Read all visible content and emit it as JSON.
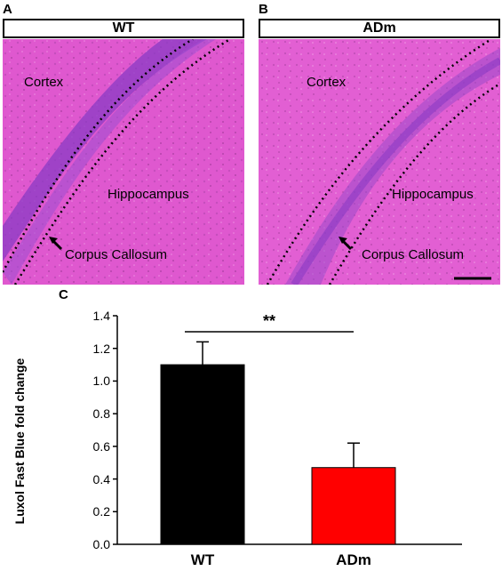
{
  "panels": {
    "a": {
      "letter": "A",
      "title": "WT",
      "labels": {
        "cortex": "Cortex",
        "hippocampus": "Hippocampus",
        "corpus": "Corpus Callosum"
      }
    },
    "b": {
      "letter": "B",
      "title": "ADm",
      "labels": {
        "cortex": "Cortex",
        "hippocampus": "Hippocampus",
        "corpus": "Corpus Callosum"
      }
    },
    "c": {
      "letter": "C"
    }
  },
  "colors": {
    "tissue_pink": "#e05ad0",
    "myelin_purple": "#8a3bc4",
    "wt_bar": "#000000",
    "adm_bar": "#ff0000"
  },
  "chart_data": {
    "type": "bar",
    "categories": [
      "WT",
      "ADm"
    ],
    "values": [
      1.1,
      0.47
    ],
    "errors": [
      0.14,
      0.15
    ],
    "ylabel": "Luxol Fast Blue fold change",
    "ylim": [
      0.0,
      1.4
    ],
    "yticks": [
      "0.0",
      "0.2",
      "0.4",
      "0.6",
      "0.8",
      "1.0",
      "1.2",
      "1.4"
    ],
    "significance": "**",
    "colors": [
      "#000000",
      "#ff0000"
    ]
  }
}
